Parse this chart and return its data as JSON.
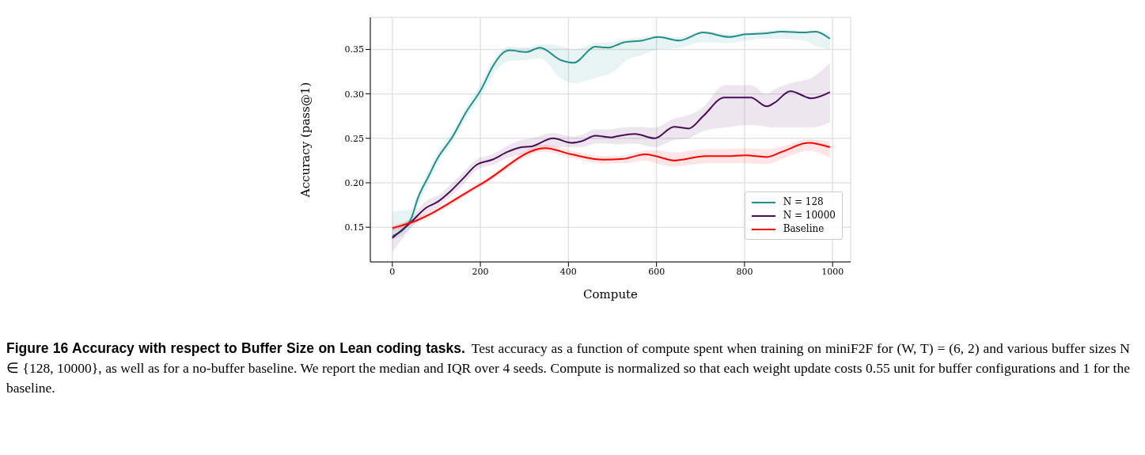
{
  "chart_data": {
    "type": "line",
    "title": "Figure 16  Accuracy with respect to Buffer Size on Lean coding tasks.",
    "xlabel": "Compute",
    "ylabel": "Accuracy (pass@1)",
    "annotations": [
      "Test accuracy as a function of compute spent when training on miniF2F for (W, T) = (6, 2) and various buffer sizes N ∈ {128, 10000}, as well as for a no-buffer baseline. We report the median and IQR over 4 seeds. Compute is normalized so that each weight update costs 0.55 unit for buffer configurations and 1 for the baseline."
    ],
    "xlim": [
      -50,
      1041
    ],
    "ylim": [
      0.111,
      0.386
    ],
    "xticks": [
      0,
      200,
      400,
      600,
      800,
      1000
    ],
    "yticks": [
      0.15,
      {
        "value": 0.2,
        "label": "0.20"
      },
      0.25,
      {
        "value": 0.3,
        "label": "0.30"
      },
      0.35
    ],
    "grid": true,
    "legend": "bottom right",
    "marker": "none",
    "line_style": "solid",
    "series": [
      {
        "name": "N = 128",
        "color": "#1f8f8a",
        "x": [
          0,
          41,
          59,
          83,
          101,
          137,
          167,
          203,
          227,
          251,
          266,
          304,
          335,
          383,
          412,
          461,
          491,
          515,
          526,
          568,
          604,
          652,
          706,
          766,
          802,
          844,
          886,
          934,
          961,
          994
        ],
        "values": [
          0.14,
          0.158,
          0.184,
          0.208,
          0.226,
          0.252,
          0.279,
          0.306,
          0.33,
          0.346,
          0.349,
          0.347,
          0.352,
          0.338,
          0.335,
          0.353,
          0.352,
          0.356,
          0.358,
          0.36,
          0.364,
          0.36,
          0.369,
          0.364,
          0.367,
          0.368,
          0.37,
          0.369,
          0.37,
          0.362
        ],
        "lower": [
          0.136,
          0.15,
          0.175,
          0.2,
          0.22,
          0.246,
          0.272,
          0.298,
          0.32,
          0.334,
          0.337,
          0.338,
          0.34,
          0.318,
          0.312,
          0.318,
          0.322,
          0.33,
          0.336,
          0.344,
          0.35,
          0.352,
          0.358,
          0.357,
          0.36,
          0.362,
          0.362,
          0.36,
          0.354,
          0.35
        ],
        "upper": [
          0.168,
          0.17,
          0.19,
          0.214,
          0.232,
          0.258,
          0.285,
          0.313,
          0.337,
          0.35,
          0.353,
          0.352,
          0.356,
          0.354,
          0.35,
          0.357,
          0.358,
          0.36,
          0.361,
          0.364,
          0.366,
          0.364,
          0.371,
          0.367,
          0.369,
          0.371,
          0.372,
          0.371,
          0.371,
          0.367
        ]
      },
      {
        "name": "N = 10000",
        "color": "#4b0c5a",
        "x": [
          0,
          41,
          77,
          101,
          131,
          161,
          191,
          227,
          263,
          293,
          317,
          365,
          407,
          431,
          461,
          497,
          508,
          551,
          596,
          640,
          673,
          706,
          754,
          814,
          850,
          868,
          904,
          952,
          994
        ],
        "values": [
          0.138,
          0.155,
          0.172,
          0.178,
          0.19,
          0.205,
          0.22,
          0.226,
          0.235,
          0.24,
          0.241,
          0.25,
          0.245,
          0.247,
          0.253,
          0.251,
          0.252,
          0.255,
          0.25,
          0.263,
          0.261,
          0.275,
          0.296,
          0.296,
          0.286,
          0.29,
          0.303,
          0.295,
          0.302
        ],
        "lower": [
          0.122,
          0.148,
          0.165,
          0.172,
          0.184,
          0.198,
          0.214,
          0.22,
          0.228,
          0.232,
          0.234,
          0.24,
          0.24,
          0.24,
          0.244,
          0.244,
          0.243,
          0.244,
          0.24,
          0.248,
          0.25,
          0.258,
          0.262,
          0.265,
          0.263,
          0.262,
          0.262,
          0.262,
          0.268
        ],
        "upper": [
          0.15,
          0.16,
          0.18,
          0.185,
          0.197,
          0.212,
          0.226,
          0.232,
          0.242,
          0.248,
          0.25,
          0.256,
          0.252,
          0.254,
          0.26,
          0.26,
          0.261,
          0.263,
          0.262,
          0.272,
          0.276,
          0.285,
          0.31,
          0.31,
          0.3,
          0.305,
          0.312,
          0.318,
          0.335
        ]
      },
      {
        "name": "Baseline",
        "color": "#ff0000",
        "x": [
          0,
          41,
          203,
          347,
          407,
          479,
          526,
          574,
          598,
          640,
          712,
          760,
          802,
          850,
          886,
          946,
          994
        ],
        "values": [
          0.149,
          0.155,
          0.199,
          0.239,
          0.232,
          0.226,
          0.227,
          0.232,
          0.23,
          0.225,
          0.23,
          0.23,
          0.231,
          0.229,
          0.235,
          0.245,
          0.24
        ],
        "lower": [
          0.146,
          0.152,
          0.196,
          0.235,
          0.228,
          0.222,
          0.222,
          0.225,
          0.222,
          0.218,
          0.222,
          0.222,
          0.222,
          0.221,
          0.227,
          0.236,
          0.228
        ],
        "upper": [
          0.152,
          0.158,
          0.202,
          0.243,
          0.236,
          0.23,
          0.231,
          0.236,
          0.237,
          0.234,
          0.238,
          0.238,
          0.239,
          0.238,
          0.241,
          0.249,
          0.246
        ]
      }
    ]
  }
}
